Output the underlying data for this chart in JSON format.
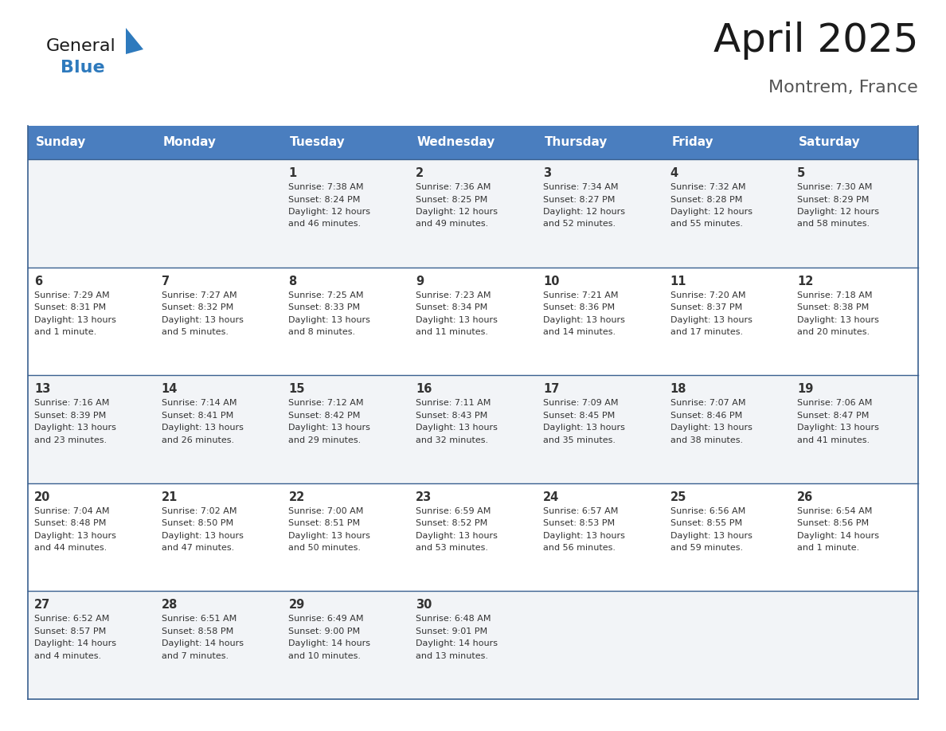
{
  "title": "April 2025",
  "subtitle": "Montrem, France",
  "header_bg": "#4a7ebf",
  "header_text": "#ffffff",
  "row_bg_light": "#f2f4f7",
  "row_bg_white": "#ffffff",
  "border_color": "#3a6090",
  "text_color": "#333333",
  "day_num_color": "#333333",
  "days_of_week": [
    "Sunday",
    "Monday",
    "Tuesday",
    "Wednesday",
    "Thursday",
    "Friday",
    "Saturday"
  ],
  "weeks": [
    [
      {
        "day": "",
        "info": ""
      },
      {
        "day": "",
        "info": ""
      },
      {
        "day": "1",
        "info": "Sunrise: 7:38 AM\nSunset: 8:24 PM\nDaylight: 12 hours\nand 46 minutes."
      },
      {
        "day": "2",
        "info": "Sunrise: 7:36 AM\nSunset: 8:25 PM\nDaylight: 12 hours\nand 49 minutes."
      },
      {
        "day": "3",
        "info": "Sunrise: 7:34 AM\nSunset: 8:27 PM\nDaylight: 12 hours\nand 52 minutes."
      },
      {
        "day": "4",
        "info": "Sunrise: 7:32 AM\nSunset: 8:28 PM\nDaylight: 12 hours\nand 55 minutes."
      },
      {
        "day": "5",
        "info": "Sunrise: 7:30 AM\nSunset: 8:29 PM\nDaylight: 12 hours\nand 58 minutes."
      }
    ],
    [
      {
        "day": "6",
        "info": "Sunrise: 7:29 AM\nSunset: 8:31 PM\nDaylight: 13 hours\nand 1 minute."
      },
      {
        "day": "7",
        "info": "Sunrise: 7:27 AM\nSunset: 8:32 PM\nDaylight: 13 hours\nand 5 minutes."
      },
      {
        "day": "8",
        "info": "Sunrise: 7:25 AM\nSunset: 8:33 PM\nDaylight: 13 hours\nand 8 minutes."
      },
      {
        "day": "9",
        "info": "Sunrise: 7:23 AM\nSunset: 8:34 PM\nDaylight: 13 hours\nand 11 minutes."
      },
      {
        "day": "10",
        "info": "Sunrise: 7:21 AM\nSunset: 8:36 PM\nDaylight: 13 hours\nand 14 minutes."
      },
      {
        "day": "11",
        "info": "Sunrise: 7:20 AM\nSunset: 8:37 PM\nDaylight: 13 hours\nand 17 minutes."
      },
      {
        "day": "12",
        "info": "Sunrise: 7:18 AM\nSunset: 8:38 PM\nDaylight: 13 hours\nand 20 minutes."
      }
    ],
    [
      {
        "day": "13",
        "info": "Sunrise: 7:16 AM\nSunset: 8:39 PM\nDaylight: 13 hours\nand 23 minutes."
      },
      {
        "day": "14",
        "info": "Sunrise: 7:14 AM\nSunset: 8:41 PM\nDaylight: 13 hours\nand 26 minutes."
      },
      {
        "day": "15",
        "info": "Sunrise: 7:12 AM\nSunset: 8:42 PM\nDaylight: 13 hours\nand 29 minutes."
      },
      {
        "day": "16",
        "info": "Sunrise: 7:11 AM\nSunset: 8:43 PM\nDaylight: 13 hours\nand 32 minutes."
      },
      {
        "day": "17",
        "info": "Sunrise: 7:09 AM\nSunset: 8:45 PM\nDaylight: 13 hours\nand 35 minutes."
      },
      {
        "day": "18",
        "info": "Sunrise: 7:07 AM\nSunset: 8:46 PM\nDaylight: 13 hours\nand 38 minutes."
      },
      {
        "day": "19",
        "info": "Sunrise: 7:06 AM\nSunset: 8:47 PM\nDaylight: 13 hours\nand 41 minutes."
      }
    ],
    [
      {
        "day": "20",
        "info": "Sunrise: 7:04 AM\nSunset: 8:48 PM\nDaylight: 13 hours\nand 44 minutes."
      },
      {
        "day": "21",
        "info": "Sunrise: 7:02 AM\nSunset: 8:50 PM\nDaylight: 13 hours\nand 47 minutes."
      },
      {
        "day": "22",
        "info": "Sunrise: 7:00 AM\nSunset: 8:51 PM\nDaylight: 13 hours\nand 50 minutes."
      },
      {
        "day": "23",
        "info": "Sunrise: 6:59 AM\nSunset: 8:52 PM\nDaylight: 13 hours\nand 53 minutes."
      },
      {
        "day": "24",
        "info": "Sunrise: 6:57 AM\nSunset: 8:53 PM\nDaylight: 13 hours\nand 56 minutes."
      },
      {
        "day": "25",
        "info": "Sunrise: 6:56 AM\nSunset: 8:55 PM\nDaylight: 13 hours\nand 59 minutes."
      },
      {
        "day": "26",
        "info": "Sunrise: 6:54 AM\nSunset: 8:56 PM\nDaylight: 14 hours\nand 1 minute."
      }
    ],
    [
      {
        "day": "27",
        "info": "Sunrise: 6:52 AM\nSunset: 8:57 PM\nDaylight: 14 hours\nand 4 minutes."
      },
      {
        "day": "28",
        "info": "Sunrise: 6:51 AM\nSunset: 8:58 PM\nDaylight: 14 hours\nand 7 minutes."
      },
      {
        "day": "29",
        "info": "Sunrise: 6:49 AM\nSunset: 9:00 PM\nDaylight: 14 hours\nand 10 minutes."
      },
      {
        "day": "30",
        "info": "Sunrise: 6:48 AM\nSunset: 9:01 PM\nDaylight: 14 hours\nand 13 minutes."
      },
      {
        "day": "",
        "info": ""
      },
      {
        "day": "",
        "info": ""
      },
      {
        "day": "",
        "info": ""
      }
    ]
  ],
  "logo_general_color": "#1a1a1a",
  "logo_blue_color": "#2e7abd",
  "logo_triangle_color": "#2e7abd",
  "title_color": "#1a1a1a",
  "subtitle_color": "#555555"
}
